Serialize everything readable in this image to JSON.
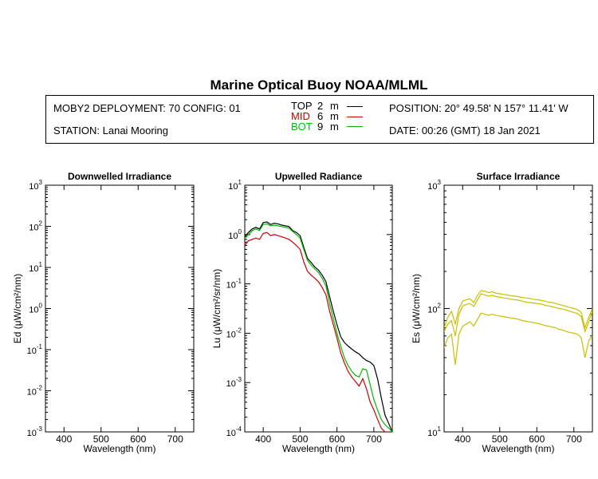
{
  "header": {
    "title": "Marine Optical Buoy NOAA/MLML",
    "deployment": "MOBY2 DEPLOYMENT: 70 CONFIG: 01",
    "station": "STATION: Lanai Mooring",
    "position": "POSITION: 20° 49.58' N   157° 11.41' W",
    "date": "DATE: 00:26 (GMT) 18 Jan 2021"
  },
  "legend": [
    {
      "name": "TOP",
      "depth": "2",
      "unit": "m",
      "color": "#000000"
    },
    {
      "name": "MID",
      "depth": "6",
      "unit": "m",
      "color": "#cc0000"
    },
    {
      "name": "BOT",
      "depth": "9",
      "unit": "m",
      "color": "#00bb00"
    }
  ],
  "chart_data": [
    {
      "type": "line",
      "title": "Downwelled Irradiance",
      "xlabel": "Wavelength (nm)",
      "ylabel_prefix": "Ed",
      "ylabel_unit": "(μW/cm²/nm)",
      "xlim": [
        350,
        750
      ],
      "ylim": [
        0.001,
        1000
      ],
      "log_y": true,
      "x_ticks": [
        400,
        500,
        600,
        700
      ],
      "y_ticks": [
        {
          "base": "10",
          "exp": "3"
        },
        {
          "base": "10",
          "exp": "2"
        },
        {
          "base": "10",
          "exp": "1"
        },
        {
          "base": "10",
          "exp": "0"
        },
        {
          "base": "10",
          "exp": "-1"
        },
        {
          "base": "10",
          "exp": "-2"
        },
        {
          "base": "10",
          "exp": "-3"
        }
      ],
      "series": []
    },
    {
      "type": "line",
      "title": "Upwelled Radiance",
      "xlabel": "Wavelength (nm)",
      "ylabel_prefix": "Lu",
      "ylabel_unit": "(μW/cm²/sr/nm)",
      "xlim": [
        350,
        750
      ],
      "ylim": [
        0.0001,
        10
      ],
      "log_y": true,
      "x_ticks": [
        400,
        500,
        600,
        700
      ],
      "y_ticks": [
        {
          "base": "10",
          "exp": "1"
        },
        {
          "base": "10",
          "exp": "0"
        },
        {
          "base": "10",
          "exp": "-1"
        },
        {
          "base": "10",
          "exp": "-2"
        },
        {
          "base": "10",
          "exp": "-3"
        },
        {
          "base": "10",
          "exp": "-4"
        }
      ],
      "series": [
        {
          "color": "#000000",
          "x": [
            350,
            360,
            370,
            380,
            390,
            400,
            410,
            420,
            430,
            440,
            450,
            460,
            470,
            480,
            490,
            500,
            510,
            520,
            530,
            540,
            550,
            560,
            570,
            580,
            590,
            600,
            610,
            620,
            630,
            640,
            650,
            660,
            670,
            680,
            690,
            700,
            710,
            720,
            730,
            740,
            750
          ],
          "y": [
            0.9,
            1.1,
            1.3,
            1.4,
            1.3,
            1.75,
            1.8,
            1.6,
            1.7,
            1.65,
            1.55,
            1.5,
            1.45,
            1.2,
            1.1,
            0.95,
            0.55,
            0.33,
            0.27,
            0.22,
            0.19,
            0.15,
            0.11,
            0.055,
            0.028,
            0.015,
            0.0085,
            0.0065,
            0.0055,
            0.0048,
            0.0042,
            0.0038,
            0.0032,
            0.0028,
            0.0026,
            0.0022,
            0.0012,
            0.0005,
            0.00022,
            0.00015,
            0.0001
          ]
        },
        {
          "color": "#cc0000",
          "x": [
            350,
            360,
            370,
            380,
            390,
            400,
            410,
            420,
            430,
            440,
            450,
            460,
            470,
            480,
            490,
            500,
            510,
            520,
            530,
            540,
            550,
            560,
            570,
            580,
            590,
            600,
            610,
            620,
            630,
            640,
            650,
            660,
            670,
            680,
            690,
            700,
            710,
            720,
            730,
            740
          ],
          "y": [
            0.6,
            0.75,
            0.8,
            0.85,
            0.8,
            1.05,
            1.1,
            0.95,
            1.0,
            0.95,
            0.9,
            0.85,
            0.8,
            0.7,
            0.6,
            0.5,
            0.28,
            0.18,
            0.15,
            0.13,
            0.11,
            0.085,
            0.06,
            0.028,
            0.015,
            0.008,
            0.004,
            0.0025,
            0.0017,
            0.0013,
            0.00105,
            0.00085,
            0.0012,
            0.00075,
            0.0004,
            0.00028,
            0.00018,
            0.00012,
            0.0001,
            0.0001
          ]
        },
        {
          "color": "#00bb00",
          "x": [
            350,
            360,
            370,
            380,
            390,
            400,
            410,
            420,
            430,
            440,
            450,
            460,
            470,
            480,
            490,
            500,
            510,
            520,
            530,
            540,
            550,
            560,
            570,
            580,
            590,
            600,
            610,
            620,
            630,
            640,
            650,
            660,
            670,
            680,
            690,
            700,
            710,
            720,
            730,
            740,
            750
          ],
          "y": [
            0.85,
            1.0,
            1.2,
            1.3,
            1.2,
            1.6,
            1.65,
            1.5,
            1.55,
            1.5,
            1.45,
            1.4,
            1.35,
            1.15,
            1.0,
            0.85,
            0.5,
            0.3,
            0.24,
            0.2,
            0.17,
            0.13,
            0.09,
            0.04,
            0.02,
            0.01,
            0.0055,
            0.0032,
            0.0022,
            0.0017,
            0.0014,
            0.0013,
            0.0019,
            0.0018,
            0.0009,
            0.00045,
            0.00028,
            0.00018,
            0.00014,
            0.00012,
            0.0001
          ]
        }
      ]
    },
    {
      "type": "line",
      "title": "Surface Irradiance",
      "xlabel": "Wavelength (nm)",
      "ylabel_prefix": "Es",
      "ylabel_unit": "(μW/cm²/nm)",
      "xlim": [
        350,
        750
      ],
      "ylim": [
        10,
        1000
      ],
      "log_y": true,
      "x_ticks": [
        400,
        500,
        600,
        700
      ],
      "y_ticks": [
        {
          "base": "10",
          "exp": "3"
        },
        {
          "base": "10",
          "exp": "2"
        },
        {
          "base": "10",
          "exp": "1"
        }
      ],
      "series": [
        {
          "color": "#c8c000",
          "x": [
            350,
            360,
            370,
            380,
            390,
            400,
            410,
            420,
            430,
            440,
            450,
            460,
            470,
            480,
            490,
            500,
            510,
            520,
            530,
            540,
            550,
            560,
            570,
            580,
            590,
            600,
            610,
            620,
            630,
            640,
            650,
            660,
            670,
            680,
            690,
            700,
            710,
            720,
            730,
            740,
            750
          ],
          "y": [
            70,
            85,
            95,
            75,
            100,
            115,
            118,
            120,
            112,
            128,
            140,
            138,
            135,
            137,
            133,
            132,
            130,
            129,
            127,
            126,
            125,
            123,
            122,
            121,
            119,
            118,
            117,
            115,
            113,
            112,
            110,
            108,
            106,
            104,
            102,
            100,
            98,
            93,
            70,
            85,
            100
          ]
        },
        {
          "color": "#c8c000",
          "x": [
            350,
            360,
            370,
            380,
            390,
            400,
            410,
            420,
            430,
            440,
            450,
            460,
            470,
            480,
            490,
            500,
            510,
            520,
            530,
            540,
            550,
            560,
            570,
            580,
            590,
            600,
            610,
            620,
            630,
            640,
            650,
            660,
            670,
            680,
            690,
            700,
            710,
            720,
            730,
            740,
            750
          ],
          "y": [
            65,
            75,
            80,
            60,
            90,
            105,
            108,
            110,
            104,
            118,
            132,
            129,
            126,
            128,
            125,
            124,
            122,
            121,
            119,
            118,
            117,
            115,
            113,
            112,
            111,
            110,
            109,
            107,
            105,
            104,
            102,
            100,
            99,
            97,
            95,
            93,
            91,
            86,
            65,
            78,
            95
          ]
        },
        {
          "color": "#c8c000",
          "x": [
            350,
            360,
            370,
            380,
            390,
            400,
            410,
            420,
            430,
            440,
            450,
            460,
            470,
            480,
            490,
            500,
            510,
            520,
            530,
            540,
            550,
            560,
            570,
            580,
            590,
            600,
            610,
            620,
            630,
            640,
            650,
            660,
            670,
            680,
            690,
            700,
            710,
            720,
            730,
            740,
            750
          ],
          "y": [
            48,
            58,
            62,
            35,
            62,
            72,
            75,
            78,
            72,
            82,
            92,
            90,
            88,
            90,
            88,
            87,
            86,
            85,
            84,
            83,
            82,
            80,
            79,
            78,
            77,
            76,
            75,
            73,
            72,
            71,
            70,
            68,
            67,
            65,
            64,
            63,
            62,
            58,
            40,
            55,
            60
          ]
        }
      ]
    }
  ]
}
